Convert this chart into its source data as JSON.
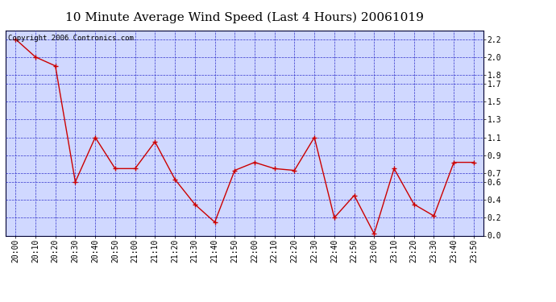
{
  "title": "10 Minute Average Wind Speed (Last 4 Hours) 20061019",
  "copyright": "Copyright 2006 Contronics.com",
  "x_labels": [
    "20:00",
    "20:10",
    "20:20",
    "20:30",
    "20:40",
    "20:50",
    "21:00",
    "21:10",
    "21:20",
    "21:30",
    "21:40",
    "21:50",
    "22:00",
    "22:10",
    "22:20",
    "22:30",
    "22:40",
    "22:50",
    "23:00",
    "23:10",
    "23:20",
    "23:30",
    "23:40",
    "23:50"
  ],
  "y_values": [
    2.2,
    2.0,
    1.9,
    0.6,
    1.1,
    0.75,
    0.75,
    1.05,
    0.63,
    0.35,
    0.15,
    0.73,
    0.82,
    0.75,
    0.73,
    1.1,
    0.2,
    0.45,
    0.02,
    0.75,
    0.35,
    0.22,
    0.82,
    0.82
  ],
  "line_color": "#cc0000",
  "marker_color": "#cc0000",
  "bg_color": "#d0d8ff",
  "outer_bg": "#ffffff",
  "grid_color": "#3333cc",
  "title_color": "#000000",
  "ylim": [
    0.0,
    2.3
  ],
  "yticks": [
    0.0,
    0.2,
    0.4,
    0.6,
    0.7,
    0.9,
    1.1,
    1.3,
    1.5,
    1.7,
    1.8,
    2.0,
    2.2
  ],
  "title_fontsize": 11,
  "tick_fontsize": 7,
  "copyright_fontsize": 6.5
}
